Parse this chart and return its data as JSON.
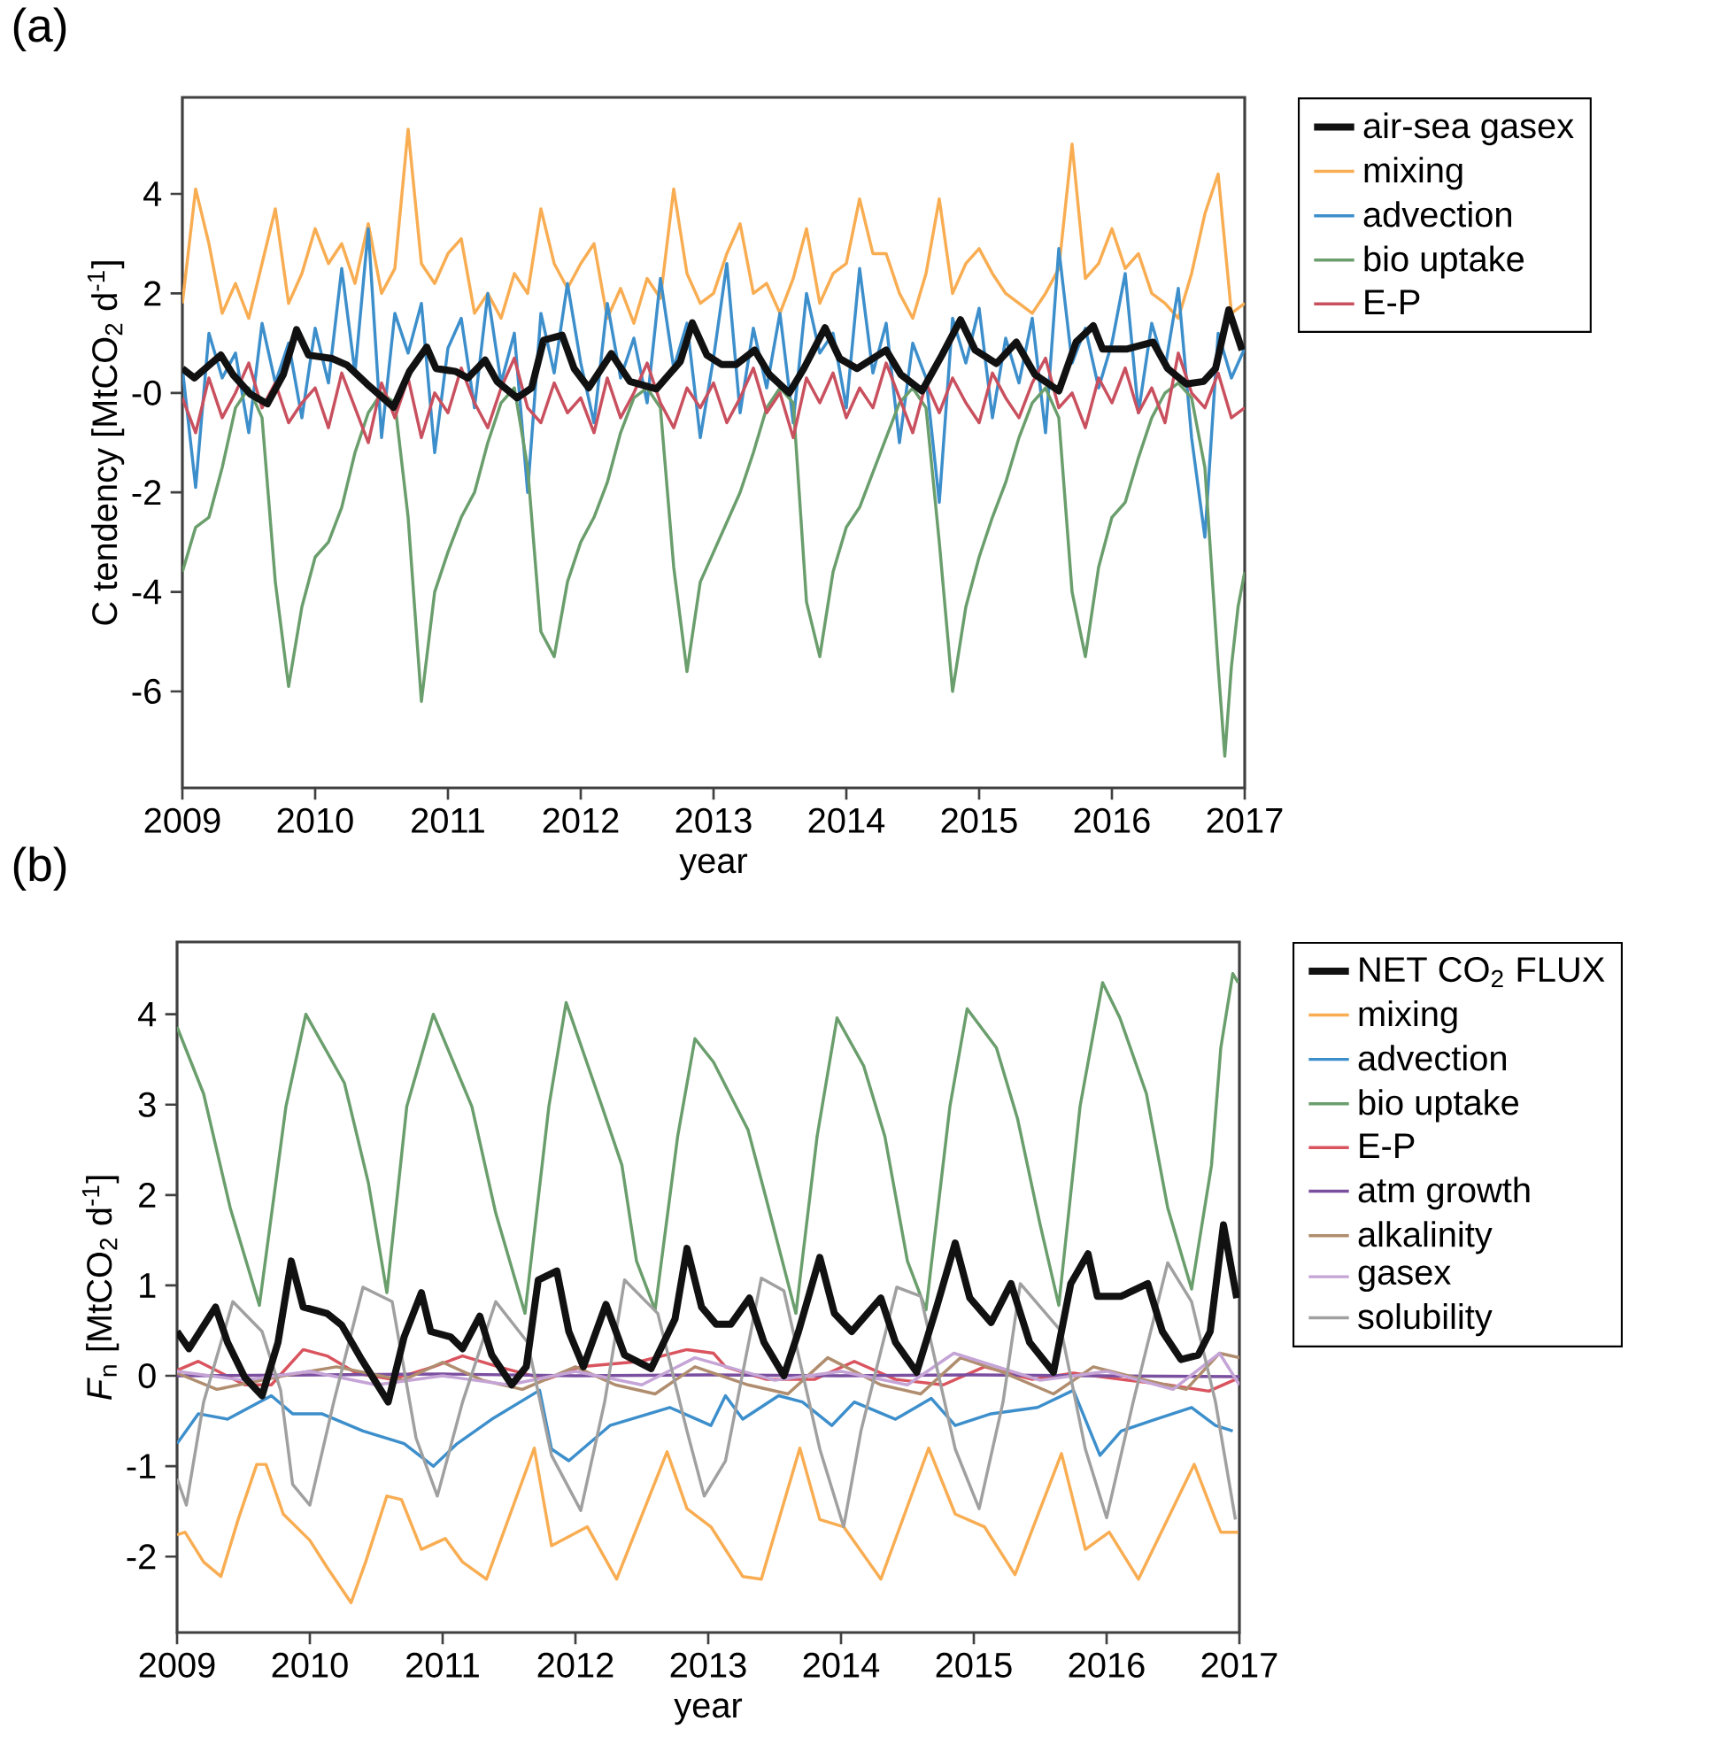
{
  "chart_data": [
    {
      "type": "line",
      "title": "(a)",
      "xlabel": "year",
      "ylabel": "C tendency [MtCO$_{2}$ d$^{-1}$]",
      "xlim": [
        2009,
        2017
      ],
      "ylim": [
        -7.94,
        5.94
      ],
      "xticks": [
        2009,
        2010,
        2011,
        2012,
        2013,
        2014,
        2015,
        2016,
        2017
      ],
      "yticks": [
        4,
        2,
        {
          "value": 0,
          "label": "-0"
        },
        -2,
        -4,
        -6
      ],
      "legend": "right",
      "marker": "none",
      "line_style": "solid",
      "x": [
        2009.0,
        2009.1,
        2009.2,
        2009.3,
        2009.4,
        2009.5,
        2009.6,
        2009.7,
        2009.8,
        2009.9,
        2010.0,
        2010.1,
        2010.2,
        2010.3,
        2010.4,
        2010.5,
        2010.6,
        2010.7,
        2010.8,
        2010.9,
        2011.0,
        2011.1,
        2011.2,
        2011.3,
        2011.4,
        2011.5,
        2011.6,
        2011.7,
        2011.8,
        2011.9,
        2012.0,
        2012.1,
        2012.2,
        2012.3,
        2012.4,
        2012.5,
        2012.6,
        2012.7,
        2012.8,
        2012.9,
        2013.0,
        2013.1,
        2013.2,
        2013.3,
        2013.4,
        2013.5,
        2013.6,
        2013.7,
        2013.8,
        2013.9,
        2014.0,
        2014.1,
        2014.2,
        2014.3,
        2014.4,
        2014.5,
        2014.6,
        2014.7,
        2014.8,
        2014.9,
        2015.0,
        2015.1,
        2015.2,
        2015.3,
        2015.4,
        2015.5,
        2015.6,
        2015.7,
        2015.8,
        2015.9,
        2016.0,
        2016.1,
        2016.2,
        2016.3,
        2016.4,
        2016.5,
        2016.6,
        2016.7,
        2016.8,
        2016.9,
        2017.0
      ],
      "series": [
        {
          "name": "air-sea gasex",
          "color": "#111111",
          "x": [
            2009.0,
            2009.09,
            2009.29,
            2009.38,
            2009.51,
            2009.64,
            2009.76,
            2009.86,
            2009.95,
            2010.13,
            2010.24,
            2010.39,
            2010.59,
            2010.71,
            2010.84,
            2010.91,
            2011.06,
            2011.15,
            2011.28,
            2011.37,
            2011.52,
            2011.63,
            2011.72,
            2011.86,
            2011.95,
            2012.06,
            2012.23,
            2012.37,
            2012.57,
            2012.75,
            2012.84,
            2012.95,
            2013.06,
            2013.17,
            2013.31,
            2013.42,
            2013.57,
            2013.68,
            2013.84,
            2013.95,
            2014.08,
            2014.3,
            2014.41,
            2014.57,
            2014.72,
            2014.86,
            2014.97,
            2015.13,
            2015.28,
            2015.42,
            2015.6,
            2015.73,
            2015.86,
            2015.93,
            2016.11,
            2016.31,
            2016.42,
            2016.56,
            2016.69,
            2016.78,
            2016.88,
            2016.98
          ],
          "values": [
            0.49,
            0.3,
            0.76,
            0.37,
            -0.02,
            -0.22,
            0.37,
            1.27,
            0.76,
            0.69,
            0.56,
            0.18,
            -0.29,
            0.43,
            0.92,
            0.49,
            0.43,
            0.3,
            0.66,
            0.23,
            -0.1,
            0.1,
            1.06,
            1.16,
            0.49,
            0.1,
            0.79,
            0.23,
            0.08,
            0.63,
            1.41,
            0.76,
            0.57,
            0.57,
            0.86,
            0.37,
            0.0,
            0.49,
            1.31,
            0.69,
            0.49,
            0.86,
            0.37,
            0.04,
            0.76,
            1.47,
            0.86,
            0.59,
            1.02,
            0.37,
            0.04,
            1.02,
            1.35,
            0.88,
            0.88,
            1.02,
            0.49,
            0.18,
            0.23,
            0.49,
            1.67,
            0.86
          ]
        },
        {
          "name": "mixing",
          "color": "#f9ad52",
          "values": [
            1.8,
            4.1,
            3.0,
            1.6,
            2.2,
            1.5,
            2.6,
            3.7,
            1.8,
            2.4,
            3.3,
            2.6,
            3.0,
            2.2,
            3.4,
            2.0,
            2.5,
            5.3,
            2.6,
            2.2,
            2.8,
            3.1,
            1.6,
            2.0,
            1.5,
            2.4,
            2.0,
            3.7,
            2.6,
            2.1,
            2.6,
            3.0,
            1.5,
            2.1,
            1.4,
            2.3,
            1.9,
            4.1,
            2.4,
            1.8,
            2.0,
            2.8,
            3.4,
            2.0,
            2.2,
            1.6,
            2.3,
            3.3,
            1.8,
            2.4,
            2.6,
            3.9,
            2.8,
            2.8,
            2.0,
            1.5,
            2.4,
            3.9,
            2.0,
            2.6,
            2.9,
            2.4,
            2.0,
            1.8,
            1.6,
            2.0,
            2.5,
            5.0,
            2.3,
            2.6,
            3.3,
            2.5,
            2.8,
            2.0,
            1.8,
            1.5,
            2.4,
            3.6,
            4.4,
            1.6,
            1.8
          ]
        },
        {
          "name": "advection",
          "color": "#3d8fcc",
          "values": [
            0.5,
            -1.9,
            1.2,
            0.3,
            0.8,
            -0.8,
            1.4,
            0.2,
            1.0,
            -0.5,
            1.3,
            0.2,
            2.5,
            0.4,
            3.3,
            -0.9,
            1.6,
            0.8,
            1.8,
            -1.2,
            0.9,
            1.5,
            -0.3,
            2.0,
            0.2,
            1.2,
            -2.0,
            1.6,
            0.4,
            2.2,
            0.6,
            -0.6,
            1.8,
            0.3,
            1.1,
            -0.2,
            2.3,
            0.5,
            1.4,
            -0.9,
            0.7,
            2.6,
            -0.4,
            1.3,
            0.1,
            1.6,
            -0.6,
            2.0,
            0.8,
            1.2,
            -0.3,
            2.5,
            0.4,
            1.4,
            -1.0,
            1.0,
            0.3,
            -2.2,
            1.5,
            0.6,
            1.7,
            -0.5,
            1.1,
            0.2,
            1.5,
            -0.8,
            2.9,
            0.6,
            1.3,
            0.1,
            1.0,
            2.4,
            -0.4,
            1.4,
            0.5,
            2.1,
            -0.9,
            -2.9,
            1.2,
            0.3,
            0.9
          ]
        },
        {
          "name": "bio uptake",
          "color": "#6a9e6c",
          "x": [
            2009.0,
            2009.1,
            2009.2,
            2009.3,
            2009.4,
            2009.5,
            2009.6,
            2009.7,
            2009.8,
            2009.9,
            2010.0,
            2010.1,
            2010.2,
            2010.3,
            2010.4,
            2010.5,
            2010.6,
            2010.7,
            2010.8,
            2010.9,
            2011.0,
            2011.1,
            2011.2,
            2011.3,
            2011.4,
            2011.5,
            2011.6,
            2011.7,
            2011.8,
            2011.9,
            2012.0,
            2012.1,
            2012.2,
            2012.3,
            2012.4,
            2012.5,
            2012.6,
            2012.7,
            2012.8,
            2012.9,
            2013.0,
            2013.1,
            2013.2,
            2013.3,
            2013.4,
            2013.5,
            2013.6,
            2013.7,
            2013.8,
            2013.9,
            2014.0,
            2014.1,
            2014.2,
            2014.3,
            2014.4,
            2014.5,
            2014.6,
            2014.7,
            2014.8,
            2014.9,
            2015.0,
            2015.1,
            2015.2,
            2015.3,
            2015.4,
            2015.5,
            2015.6,
            2015.7,
            2015.8,
            2015.9,
            2016.0,
            2016.1,
            2016.2,
            2016.3,
            2016.4,
            2016.5,
            2016.6,
            2016.7,
            2016.8,
            2016.85,
            2016.9,
            2016.95,
            2017.0
          ],
          "values": [
            -3.6,
            -2.7,
            -2.5,
            -1.5,
            -0.3,
            0.1,
            -0.5,
            -3.8,
            -5.9,
            -4.3,
            -3.3,
            -3.0,
            -2.3,
            -1.2,
            -0.4,
            0.0,
            -0.2,
            -2.5,
            -6.2,
            -4.0,
            -3.2,
            -2.5,
            -2.0,
            -1.0,
            -0.2,
            0.1,
            -1.5,
            -4.8,
            -5.3,
            -3.8,
            -3.0,
            -2.5,
            -1.8,
            -0.8,
            -0.1,
            0.1,
            -0.3,
            -3.5,
            -5.6,
            -3.8,
            -3.2,
            -2.6,
            -2.0,
            -1.2,
            -0.3,
            0.1,
            -0.2,
            -4.2,
            -5.3,
            -3.6,
            -2.7,
            -2.3,
            -1.6,
            -0.9,
            -0.2,
            0.1,
            -0.3,
            -3.0,
            -6.0,
            -4.3,
            -3.3,
            -2.5,
            -1.8,
            -0.9,
            -0.2,
            0.1,
            -0.5,
            -4.0,
            -5.3,
            -3.5,
            -2.5,
            -2.2,
            -1.3,
            -0.5,
            0.0,
            0.2,
            -0.1,
            -1.5,
            -5.5,
            -7.3,
            -5.5,
            -4.3,
            -3.6
          ]
        },
        {
          "name": "E-P",
          "color": "#c9505e",
          "values": [
            -0.1,
            -0.8,
            0.3,
            -0.5,
            0.0,
            0.6,
            -0.3,
            0.2,
            -0.6,
            -0.2,
            0.1,
            -0.7,
            0.4,
            -0.3,
            -1.0,
            0.2,
            -0.5,
            0.3,
            -0.9,
            0.0,
            -0.4,
            0.5,
            -0.2,
            -0.7,
            0.1,
            0.7,
            -0.3,
            -0.6,
            0.2,
            -0.4,
            -0.1,
            -0.8,
            0.3,
            -0.5,
            0.0,
            0.6,
            -0.2,
            -0.7,
            0.1,
            -0.3,
            0.2,
            -0.6,
            -0.1,
            0.5,
            -0.4,
            0.0,
            -0.9,
            0.3,
            -0.2,
            0.4,
            -0.5,
            0.1,
            -0.3,
            0.6,
            -0.1,
            -0.8,
            0.2,
            -0.4,
            0.3,
            -0.2,
            -0.6,
            0.4,
            -0.1,
            -0.5,
            0.2,
            0.7,
            -0.3,
            0.0,
            -0.7,
            0.3,
            -0.2,
            0.5,
            -0.4,
            0.1,
            -0.6,
            0.8,
            0.0,
            -0.3,
            0.4,
            -0.5,
            -0.3
          ]
        }
      ]
    },
    {
      "type": "line",
      "title": "(b)",
      "xlabel": "year",
      "ylabel": "*F*$_{n}$ [MtCO$_{2}$ d$^{-1}$]",
      "xlim": [
        2009,
        2017
      ],
      "ylim": [
        -2.84,
        4.8
      ],
      "xticks": [
        2009,
        2010,
        2011,
        2012,
        2013,
        2014,
        2015,
        2016,
        2017
      ],
      "yticks": [
        4,
        3,
        2,
        1,
        0,
        -1,
        -2
      ],
      "legend": "right",
      "marker": "none",
      "line_style": "solid",
      "series": [
        {
          "name": "NET CO$_{2}$ FLUX",
          "color": "#111111",
          "x": [
            2009.0,
            2009.09,
            2009.29,
            2009.38,
            2009.51,
            2009.64,
            2009.76,
            2009.86,
            2009.95,
            2010.13,
            2010.24,
            2010.39,
            2010.59,
            2010.71,
            2010.84,
            2010.91,
            2011.06,
            2011.15,
            2011.28,
            2011.37,
            2011.52,
            2011.63,
            2011.72,
            2011.86,
            2011.95,
            2012.06,
            2012.23,
            2012.37,
            2012.57,
            2012.75,
            2012.84,
            2012.95,
            2013.06,
            2013.17,
            2013.31,
            2013.42,
            2013.57,
            2013.68,
            2013.84,
            2013.95,
            2014.08,
            2014.3,
            2014.41,
            2014.57,
            2014.72,
            2014.86,
            2014.97,
            2015.13,
            2015.28,
            2015.42,
            2015.6,
            2015.73,
            2015.86,
            2015.93,
            2016.11,
            2016.31,
            2016.42,
            2016.56,
            2016.69,
            2016.78,
            2016.88,
            2016.98
          ],
          "values": [
            0.49,
            0.3,
            0.76,
            0.37,
            -0.02,
            -0.22,
            0.37,
            1.27,
            0.76,
            0.69,
            0.56,
            0.18,
            -0.29,
            0.43,
            0.92,
            0.49,
            0.43,
            0.3,
            0.66,
            0.23,
            -0.1,
            0.1,
            1.06,
            1.16,
            0.49,
            0.1,
            0.79,
            0.23,
            0.08,
            0.63,
            1.41,
            0.76,
            0.57,
            0.57,
            0.86,
            0.37,
            0.0,
            0.49,
            1.31,
            0.69,
            0.49,
            0.86,
            0.37,
            0.04,
            0.76,
            1.47,
            0.86,
            0.59,
            1.02,
            0.37,
            0.04,
            1.02,
            1.35,
            0.88,
            0.88,
            1.02,
            0.49,
            0.18,
            0.23,
            0.49,
            1.67,
            0.86
          ]
        },
        {
          "name": "mixing",
          "color": "#f9ad52",
          "x": [
            2009.0,
            2009.06,
            2009.2,
            2009.33,
            2009.46,
            2009.6,
            2009.67,
            2009.8,
            2010.0,
            2010.13,
            2010.31,
            2010.42,
            2010.58,
            2010.69,
            2010.84,
            2011.02,
            2011.15,
            2011.33,
            2011.69,
            2011.82,
            2012.09,
            2012.31,
            2012.69,
            2012.84,
            2013.02,
            2013.26,
            2013.4,
            2013.69,
            2013.84,
            2014.02,
            2014.3,
            2014.66,
            2014.86,
            2015.08,
            2015.31,
            2015.66,
            2015.84,
            2016.02,
            2016.24,
            2016.66,
            2016.82,
            2016.86,
            2016.99
          ],
          "values": [
            -1.76,
            -1.73,
            -2.06,
            -2.22,
            -1.59,
            -0.98,
            -0.98,
            -1.53,
            -1.82,
            -2.12,
            -2.51,
            -2.06,
            -1.33,
            -1.37,
            -1.92,
            -1.8,
            -2.06,
            -2.25,
            -0.8,
            -1.88,
            -1.67,
            -2.25,
            -0.84,
            -1.47,
            -1.67,
            -2.22,
            -2.25,
            -0.8,
            -1.59,
            -1.67,
            -2.25,
            -0.8,
            -1.53,
            -1.67,
            -2.2,
            -0.86,
            -1.92,
            -1.73,
            -2.25,
            -0.98,
            -1.59,
            -1.73,
            -1.73
          ]
        },
        {
          "name": "advection",
          "color": "#3d8fcc",
          "x": [
            2009.0,
            2009.16,
            2009.38,
            2009.71,
            2009.87,
            2010.09,
            2010.4,
            2010.71,
            2010.93,
            2011.11,
            2011.37,
            2011.73,
            2011.82,
            2011.95,
            2012.26,
            2012.71,
            2013.02,
            2013.13,
            2013.26,
            2013.53,
            2013.71,
            2013.93,
            2014.1,
            2014.41,
            2014.68,
            2014.86,
            2015.13,
            2015.48,
            2015.75,
            2015.95,
            2016.11,
            2016.37,
            2016.64,
            2016.82,
            2016.95
          ],
          "values": [
            -0.75,
            -0.42,
            -0.48,
            -0.22,
            -0.42,
            -0.42,
            -0.61,
            -0.75,
            -1.0,
            -0.75,
            -0.48,
            -0.16,
            -0.81,
            -0.94,
            -0.55,
            -0.35,
            -0.55,
            -0.22,
            -0.48,
            -0.22,
            -0.29,
            -0.55,
            -0.29,
            -0.48,
            -0.25,
            -0.55,
            -0.42,
            -0.35,
            -0.16,
            -0.88,
            -0.61,
            -0.48,
            -0.35,
            -0.55,
            -0.61
          ]
        },
        {
          "name": "bio uptake",
          "color": "#6a9e6c",
          "x": [
            2009.0,
            2009.2,
            2009.4,
            2009.62,
            2009.82,
            2009.97,
            2010.26,
            2010.44,
            2010.58,
            2010.73,
            2010.93,
            2011.22,
            2011.4,
            2011.62,
            2011.8,
            2011.93,
            2012.2,
            2012.35,
            2012.46,
            2012.6,
            2012.77,
            2012.9,
            2013.04,
            2013.3,
            2013.44,
            2013.66,
            2013.82,
            2013.97,
            2014.17,
            2014.33,
            2014.5,
            2014.64,
            2014.82,
            2014.95,
            2015.17,
            2015.33,
            2015.5,
            2015.64,
            2015.8,
            2015.97,
            2016.1,
            2016.3,
            2016.46,
            2016.64,
            2016.79,
            2016.86,
            2016.95,
            2016.99
          ],
          "values": [
            3.86,
            3.12,
            1.86,
            0.78,
            2.98,
            4.0,
            3.24,
            2.14,
            0.92,
            2.98,
            4.0,
            2.98,
            1.8,
            0.69,
            2.98,
            4.13,
            2.98,
            2.33,
            1.27,
            0.73,
            2.65,
            3.73,
            3.47,
            2.72,
            1.94,
            0.69,
            2.65,
            3.96,
            3.43,
            2.65,
            1.27,
            0.73,
            2.98,
            4.06,
            3.63,
            2.84,
            1.67,
            0.78,
            2.98,
            4.35,
            3.96,
            3.12,
            1.86,
            0.96,
            2.33,
            3.63,
            4.45,
            4.35
          ]
        },
        {
          "name": "E-P",
          "color": "#d9545e",
          "x": [
            2009.0,
            2009.16,
            2009.51,
            2009.71,
            2009.95,
            2010.13,
            2010.35,
            2010.62,
            2010.93,
            2011.15,
            2011.42,
            2011.78,
            2012.04,
            2012.49,
            2012.84,
            2013.04,
            2013.13,
            2013.44,
            2013.8,
            2014.1,
            2014.41,
            2014.77,
            2015.08,
            2015.44,
            2015.75,
            2016.11,
            2016.46,
            2016.77,
            2016.97
          ],
          "values": [
            0.06,
            0.16,
            -0.1,
            -0.1,
            0.29,
            0.22,
            0.03,
            -0.04,
            0.1,
            0.22,
            0.1,
            -0.04,
            0.1,
            0.16,
            0.29,
            0.25,
            0.1,
            -0.04,
            -0.04,
            0.16,
            -0.04,
            -0.1,
            0.1,
            -0.04,
            0.03,
            -0.04,
            -0.1,
            -0.17,
            -0.04
          ]
        },
        {
          "name": "atm growth",
          "color": "#7b4fa0",
          "x": [
            2009,
            2010,
            2011,
            2012,
            2013,
            2014,
            2015,
            2016,
            2017
          ],
          "values": [
            0.0,
            0.01,
            0.02,
            0.0,
            0.01,
            0.0,
            0.01,
            0.0,
            -0.01
          ]
        },
        {
          "name": "alkalinity",
          "color": "#b08d6e",
          "x": [
            2009.0,
            2009.3,
            2009.8,
            2010.2,
            2010.7,
            2011.0,
            2011.3,
            2011.6,
            2012.0,
            2012.3,
            2012.6,
            2012.9,
            2013.3,
            2013.6,
            2013.9,
            2014.3,
            2014.6,
            2014.9,
            2015.2,
            2015.6,
            2015.9,
            2016.3,
            2016.6,
            2016.85,
            2017.0
          ],
          "values": [
            0.03,
            -0.15,
            0.0,
            0.1,
            -0.05,
            0.15,
            -0.05,
            -0.15,
            0.1,
            -0.1,
            -0.2,
            0.1,
            -0.1,
            -0.2,
            0.2,
            -0.1,
            -0.2,
            0.2,
            0.05,
            -0.2,
            0.1,
            -0.05,
            -0.15,
            0.25,
            0.2
          ]
        },
        {
          "name": "gasex",
          "color": "#c5a4d6",
          "x": [
            2009.0,
            2009.5,
            2010.0,
            2010.5,
            2011.0,
            2011.5,
            2012.0,
            2012.5,
            2012.9,
            2013.5,
            2014.0,
            2014.5,
            2014.85,
            2015.5,
            2016.0,
            2016.5,
            2016.85,
            2017.0
          ],
          "values": [
            0.05,
            -0.05,
            0.05,
            -0.1,
            0.0,
            -0.1,
            0.05,
            -0.1,
            0.2,
            -0.05,
            0.05,
            -0.1,
            0.25,
            -0.05,
            0.05,
            -0.15,
            0.25,
            -0.1
          ]
        },
        {
          "name": "solubility",
          "color": "#a0a0a0",
          "x": [
            2009.0,
            2009.07,
            2009.2,
            2009.42,
            2009.64,
            2009.78,
            2009.87,
            2010.0,
            2010.18,
            2010.4,
            2010.62,
            2010.8,
            2010.96,
            2011.15,
            2011.4,
            2011.64,
            2011.82,
            2012.04,
            2012.22,
            2012.37,
            2012.62,
            2012.84,
            2012.97,
            2013.13,
            2013.4,
            2013.57,
            2013.84,
            2014.02,
            2014.15,
            2014.42,
            2014.6,
            2014.86,
            2015.04,
            2015.22,
            2015.35,
            2015.66,
            2015.84,
            2016.0,
            2016.2,
            2016.46,
            2016.64,
            2016.82,
            2016.97
          ],
          "values": [
            -1.14,
            -1.43,
            -0.29,
            0.82,
            0.49,
            -0.16,
            -1.2,
            -1.43,
            -0.29,
            0.98,
            0.82,
            -0.69,
            -1.33,
            -0.29,
            0.82,
            0.37,
            -0.88,
            -1.49,
            -0.29,
            1.06,
            0.69,
            -0.61,
            -1.33,
            -0.94,
            1.08,
            0.94,
            -0.81,
            -1.67,
            -0.61,
            0.98,
            0.88,
            -0.81,
            -1.47,
            -0.29,
            1.02,
            0.49,
            -0.81,
            -1.57,
            -0.29,
            1.25,
            0.82,
            -0.29,
            -1.59
          ]
        }
      ]
    }
  ]
}
